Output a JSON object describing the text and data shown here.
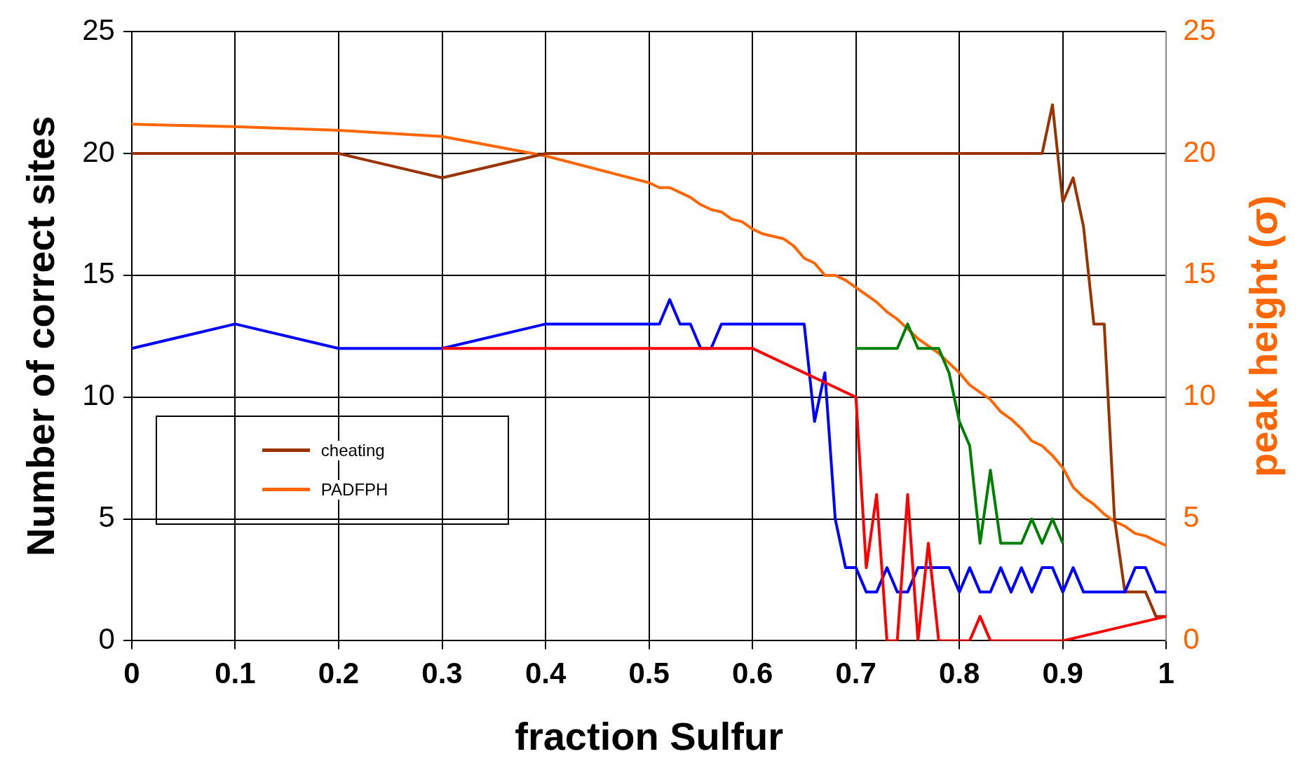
{
  "chart_data": {
    "type": "line",
    "xlabel": "fraction Sulfur",
    "ylabel": "Number of correct sites",
    "y2label": "peak height (σ)",
    "xlim": [
      0,
      1
    ],
    "xticks": [
      0,
      0.1,
      0.2,
      0.3,
      0.4,
      0.5,
      0.6,
      0.7,
      0.8,
      0.9,
      1
    ],
    "ylim": [
      0,
      25
    ],
    "yticks": [
      0,
      5,
      10,
      15,
      20,
      25
    ],
    "y2lim": [
      0,
      25
    ],
    "y2ticks": [
      0,
      5,
      10,
      15,
      20,
      25
    ],
    "grid": true,
    "legend": "bottom left",
    "marker": "none",
    "line_style": "solid",
    "series": [
      {
        "color": "#ff0000",
        "x": [
          0.3,
          0.4,
          0.5,
          0.6,
          0.7,
          0.71,
          0.72,
          0.73,
          0.74,
          0.75,
          0.76,
          0.77,
          0.78,
          0.79,
          0.8,
          0.81,
          0.82,
          0.83,
          0.84,
          0.85,
          0.86,
          0.87,
          0.88,
          0.89,
          0.9,
          1
        ],
        "values": [
          12,
          12,
          12,
          12,
          10,
          3,
          6,
          0,
          0,
          6,
          0,
          4,
          0,
          0,
          0,
          0,
          1,
          0,
          0,
          0,
          0,
          0,
          0,
          0,
          0,
          1
        ]
      },
      {
        "color": "#0000ff",
        "x": [
          0,
          0.1,
          0.2,
          0.3,
          0.4,
          0.5,
          0.51,
          0.52,
          0.53,
          0.54,
          0.55,
          0.56,
          0.57,
          0.58,
          0.59,
          0.6,
          0.61,
          0.62,
          0.63,
          0.64,
          0.65,
          0.66,
          0.67,
          0.68,
          0.69,
          0.7,
          0.71,
          0.72,
          0.73,
          0.74,
          0.75,
          0.76,
          0.77,
          0.78,
          0.79,
          0.8,
          0.81,
          0.82,
          0.83,
          0.84,
          0.85,
          0.86,
          0.87,
          0.88,
          0.89,
          0.9,
          0.91,
          0.92,
          0.93,
          0.94,
          0.95,
          0.96,
          0.97,
          0.98,
          0.99,
          1
        ],
        "values": [
          12,
          13,
          12,
          12,
          13,
          13,
          13,
          14,
          13,
          13,
          12,
          12,
          13,
          13,
          13,
          13,
          13,
          13,
          13,
          13,
          13,
          9,
          11,
          5,
          3,
          3,
          2,
          2,
          3,
          2,
          2,
          3,
          3,
          3,
          3,
          2,
          3,
          2,
          2,
          3,
          2,
          3,
          2,
          3,
          3,
          2,
          3,
          2,
          2,
          2,
          2,
          2,
          3,
          3,
          2,
          2
        ]
      },
      {
        "color": "#008000",
        "x": [
          0.7,
          0.71,
          0.72,
          0.73,
          0.74,
          0.75,
          0.76,
          0.77,
          0.78,
          0.79,
          0.8,
          0.81,
          0.82,
          0.83,
          0.84,
          0.85,
          0.86,
          0.87,
          0.88,
          0.89,
          0.9
        ],
        "values": [
          12,
          12,
          12,
          12,
          12,
          13,
          12,
          12,
          12,
          11,
          9,
          8,
          4,
          7,
          4,
          4,
          4,
          5,
          4,
          5,
          4
        ]
      },
      {
        "name": "cheating",
        "color": "#993300",
        "x": [
          0,
          0.1,
          0.2,
          0.3,
          0.4,
          0.5,
          0.6,
          0.7,
          0.8,
          0.88,
          0.89,
          0.9,
          0.91,
          0.92,
          0.93,
          0.94,
          0.95,
          0.96,
          0.97,
          0.98,
          0.99,
          1
        ],
        "values": [
          20,
          20,
          20,
          19,
          20,
          20,
          20,
          20,
          20,
          20,
          22,
          18,
          19,
          17,
          13,
          13,
          5,
          2,
          2,
          2,
          1,
          1
        ]
      },
      {
        "name": "PADFPH",
        "color": "#ff6600",
        "axis": "y2",
        "x": [
          0,
          0.1,
          0.2,
          0.3,
          0.4,
          0.5,
          0.51,
          0.52,
          0.53,
          0.54,
          0.55,
          0.56,
          0.57,
          0.58,
          0.59,
          0.6,
          0.61,
          0.62,
          0.63,
          0.64,
          0.65,
          0.66,
          0.67,
          0.68,
          0.69,
          0.7,
          0.71,
          0.72,
          0.73,
          0.74,
          0.75,
          0.76,
          0.77,
          0.78,
          0.79,
          0.8,
          0.81,
          0.82,
          0.83,
          0.84,
          0.85,
          0.86,
          0.87,
          0.88,
          0.89,
          0.9,
          0.91,
          0.92,
          0.93,
          0.94,
          0.95,
          0.96,
          0.97,
          0.98,
          0.99,
          1
        ],
        "values": [
          21.2,
          21.1,
          20.95,
          20.7,
          19.9,
          18.8,
          18.6,
          18.6,
          18.4,
          18.2,
          17.9,
          17.7,
          17.6,
          17.3,
          17.2,
          16.9,
          16.7,
          16.6,
          16.5,
          16.2,
          15.7,
          15.5,
          15,
          15,
          14.8,
          14.5,
          14.2,
          13.9,
          13.5,
          13.2,
          12.8,
          12.4,
          12.1,
          11.8,
          11.4,
          11,
          10.5,
          10.2,
          9.9,
          9.4,
          9.1,
          8.7,
          8.2,
          8,
          7.6,
          7.1,
          6.3,
          5.9,
          5.6,
          5.2,
          4.9,
          4.7,
          4.4,
          4.3,
          4.1,
          3.9
        ]
      }
    ]
  }
}
